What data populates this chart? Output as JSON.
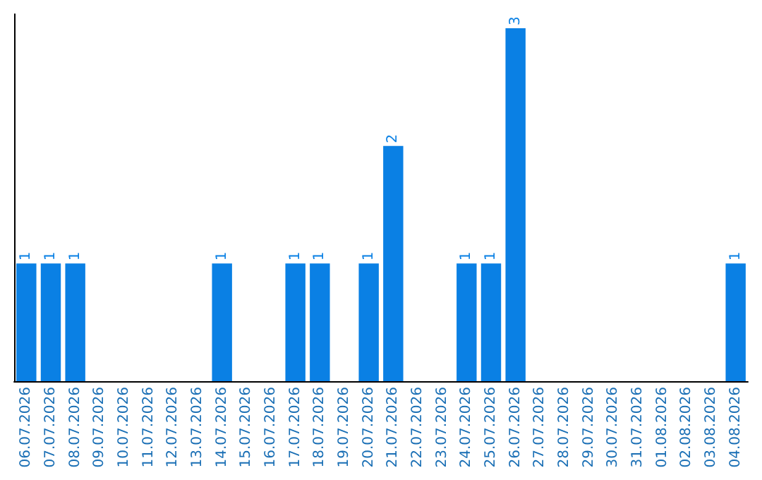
{
  "chart_data": {
    "type": "bar",
    "categories": [
      "06.07.2026",
      "07.07.2026",
      "08.07.2026",
      "09.07.2026",
      "10.07.2026",
      "11.07.2026",
      "12.07.2026",
      "13.07.2026",
      "14.07.2026",
      "15.07.2026",
      "16.07.2026",
      "17.07.2026",
      "18.07.2026",
      "19.07.2026",
      "20.07.2026",
      "21.07.2026",
      "22.07.2026",
      "23.07.2026",
      "24.07.2026",
      "25.07.2026",
      "26.07.2026",
      "27.07.2026",
      "28.07.2026",
      "29.07.2026",
      "30.07.2026",
      "31.07.2026",
      "01.08.2026",
      "02.08.2026",
      "03.08.2026",
      "04.08.2026"
    ],
    "values": [
      1,
      1,
      1,
      0,
      0,
      0,
      0,
      0,
      1,
      0,
      0,
      1,
      1,
      0,
      1,
      2,
      0,
      0,
      1,
      1,
      3,
      0,
      0,
      0,
      0,
      0,
      0,
      0,
      0,
      1
    ],
    "value_labels": [
      "1",
      "1",
      "1",
      null,
      null,
      null,
      null,
      null,
      "1",
      null,
      null,
      "1",
      "1",
      null,
      "1",
      "2",
      null,
      null,
      "1",
      "1",
      "3",
      null,
      null,
      null,
      null,
      null,
      null,
      null,
      null,
      "1"
    ],
    "color": "#0a80e4",
    "grid": false,
    "tick_labels": "x"
  }
}
